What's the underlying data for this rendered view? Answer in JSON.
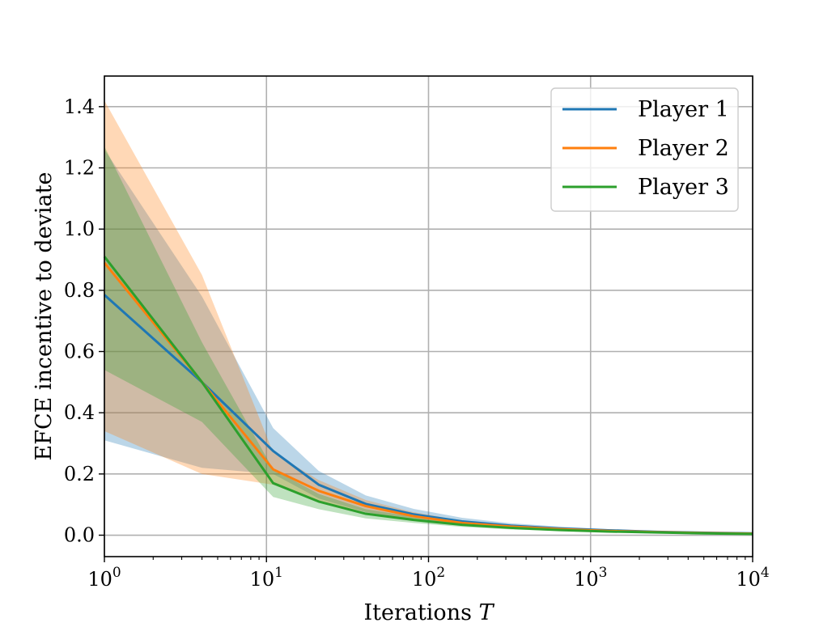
{
  "chart_data": {
    "type": "line",
    "xscale": "log",
    "xlim": [
      1,
      10000
    ],
    "ylim": [
      -0.07,
      1.5
    ],
    "grid": true,
    "legend_placement": "top-right",
    "xlabel": "Iterations",
    "xlabel_var": "T",
    "ylabel": "EFCE incentive to deviate",
    "xticks": [
      {
        "value": 1,
        "base": "10",
        "exp": "0"
      },
      {
        "value": 10,
        "base": "10",
        "exp": "1"
      },
      {
        "value": 100,
        "base": "10",
        "exp": "2"
      },
      {
        "value": 1000,
        "base": "10",
        "exp": "3"
      },
      {
        "value": 10000,
        "base": "10",
        "exp": "4"
      }
    ],
    "yticks": [
      {
        "value": 0.0,
        "label": "0.0"
      },
      {
        "value": 0.2,
        "label": "0.2"
      },
      {
        "value": 0.4,
        "label": "0.4"
      },
      {
        "value": 0.6,
        "label": "0.6"
      },
      {
        "value": 0.8,
        "label": "0.8"
      },
      {
        "value": 1.0,
        "label": "1.0"
      },
      {
        "value": 1.2,
        "label": "1.2"
      },
      {
        "value": 1.4,
        "label": "1.4"
      }
    ],
    "series": [
      {
        "name": "Player 1",
        "color": "#1f77b4",
        "x": [
          1,
          4,
          11,
          21,
          41,
          81,
          161,
          321,
          641,
          1281,
          2561,
          5121,
          10000
        ],
        "y": [
          0.785,
          0.5,
          0.275,
          0.165,
          0.102,
          0.068,
          0.045,
          0.031,
          0.022,
          0.016,
          0.011,
          0.008,
          0.006
        ],
        "lower": [
          0.31,
          0.22,
          0.2,
          0.12,
          0.075,
          0.05,
          0.033,
          0.023,
          0.016,
          0.012,
          0.008,
          0.006,
          0.004
        ],
        "upper": [
          1.26,
          0.78,
          0.35,
          0.21,
          0.13,
          0.086,
          0.057,
          0.039,
          0.028,
          0.02,
          0.014,
          0.01,
          0.008
        ]
      },
      {
        "name": "Player 2",
        "color": "#ff7f0e",
        "x": [
          1,
          4,
          11,
          21,
          41,
          81,
          161,
          321,
          641,
          1281,
          2561,
          5121,
          10000
        ],
        "y": [
          0.89,
          0.5,
          0.215,
          0.145,
          0.095,
          0.062,
          0.04,
          0.028,
          0.02,
          0.014,
          0.01,
          0.007,
          0.005
        ],
        "lower": [
          0.34,
          0.2,
          0.165,
          0.11,
          0.075,
          0.05,
          0.033,
          0.023,
          0.016,
          0.012,
          0.008,
          0.006,
          0.004
        ],
        "upper": [
          1.42,
          0.85,
          0.27,
          0.18,
          0.115,
          0.075,
          0.048,
          0.033,
          0.024,
          0.017,
          0.012,
          0.009,
          0.006
        ]
      },
      {
        "name": "Player 3",
        "color": "#2ca02c",
        "x": [
          1,
          4,
          11,
          21,
          41,
          81,
          161,
          321,
          641,
          1281,
          2561,
          5121,
          10000
        ],
        "y": [
          0.91,
          0.5,
          0.17,
          0.11,
          0.07,
          0.05,
          0.034,
          0.024,
          0.017,
          0.012,
          0.009,
          0.006,
          0.004
        ],
        "lower": [
          0.54,
          0.37,
          0.125,
          0.085,
          0.055,
          0.04,
          0.027,
          0.019,
          0.014,
          0.01,
          0.007,
          0.005,
          0.003
        ],
        "upper": [
          1.27,
          0.63,
          0.215,
          0.135,
          0.085,
          0.06,
          0.041,
          0.029,
          0.02,
          0.014,
          0.011,
          0.007,
          0.005
        ]
      }
    ]
  }
}
